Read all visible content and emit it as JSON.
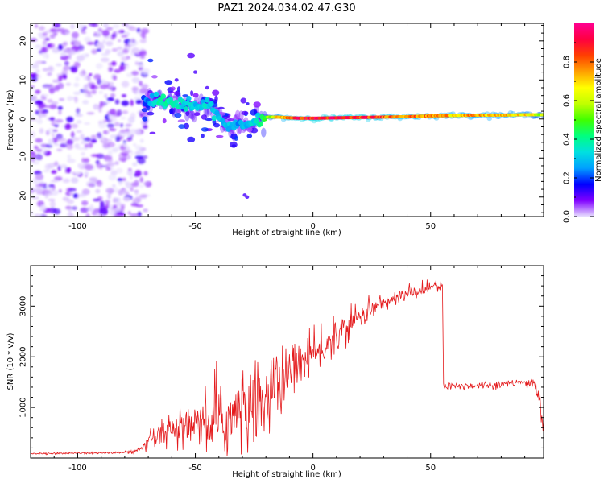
{
  "title": "PAZ1.2024.034.02.47.G30",
  "chart_data": [
    {
      "type": "heatmap",
      "xlabel": "Height of straight line (km)",
      "ylabel": "Frequency (Hz)",
      "xlim": [
        -120,
        98
      ],
      "ylim": [
        -25,
        24.5
      ],
      "xticks": [
        -100,
        -50,
        0,
        50
      ],
      "yticks": [
        -20,
        -10,
        0,
        10,
        20
      ],
      "colorbar": {
        "label": "Normalized spectral amplitude",
        "range": [
          0.0,
          1.0
        ],
        "ticks": [
          0.0,
          0.2,
          0.4,
          0.6,
          0.8
        ],
        "colormap": [
          "#e8e0ff",
          "#8000ff",
          "#0000ff",
          "#00a0ff",
          "#00e0e0",
          "#00ff80",
          "#40ff00",
          "#c0ff00",
          "#ffff00",
          "#ffa000",
          "#ff4000",
          "#ff0040",
          "#ff0090"
        ]
      },
      "ridge": {
        "x": [
          -72,
          -65,
          -60,
          -55,
          -50,
          -45,
          -40,
          -35,
          -32,
          -28,
          -24,
          -20,
          -15,
          -10,
          -5,
          0,
          10,
          20,
          30,
          40,
          50,
          60,
          70,
          80,
          90,
          98
        ],
        "y": [
          5,
          5,
          4,
          3.5,
          2.5,
          4,
          1,
          -3,
          -1.5,
          -2,
          -1,
          0.5,
          0.5,
          0.3,
          0.2,
          0.2,
          0.3,
          0.4,
          0.5,
          0.6,
          0.8,
          0.9,
          1.0,
          1.0,
          1.1,
          1.1
        ],
        "amplitude": [
          0.2,
          0.4,
          0.4,
          0.35,
          0.3,
          0.35,
          0.3,
          0.3,
          0.25,
          0.3,
          0.35,
          0.5,
          0.7,
          0.85,
          0.9,
          0.92,
          0.9,
          0.88,
          0.85,
          0.8,
          0.78,
          0.75,
          0.75,
          0.72,
          0.7,
          0.6
        ]
      },
      "noise_region_x": [
        -120,
        -72
      ]
    },
    {
      "type": "line",
      "xlabel": "Height of straight line (km)",
      "ylabel": "SNR (10 * v/v)",
      "xlim": [
        -120,
        98
      ],
      "ylim": [
        0,
        3800
      ],
      "xticks": [
        -100,
        -50,
        0,
        50
      ],
      "yticks": [
        1000,
        2000,
        3000
      ],
      "color": "#e41a1c",
      "series": [
        {
          "x": [
            -120,
            -110,
            -100,
            -90,
            -80,
            -75,
            -72,
            -70,
            -65,
            -60,
            -55,
            -50,
            -45,
            -40,
            -35,
            -30,
            -25,
            -20,
            -15,
            -10,
            -5,
            0,
            5,
            10,
            15,
            20,
            25,
            30,
            35,
            40,
            45,
            50,
            55,
            55.5,
            60,
            65,
            70,
            75,
            80,
            85,
            90,
            94,
            96,
            98
          ],
          "y": [
            90,
            90,
            100,
            100,
            110,
            140,
            200,
            300,
            450,
            500,
            550,
            600,
            650,
            700,
            800,
            900,
            1000,
            1200,
            1400,
            1700,
            1900,
            2000,
            2200,
            2400,
            2600,
            2800,
            2950,
            3050,
            3150,
            3250,
            3300,
            3380,
            3420,
            1400,
            1420,
            1430,
            1440,
            1450,
            1460,
            1470,
            1480,
            1500,
            1200,
            600
          ],
          "noise": [
            15,
            15,
            20,
            20,
            25,
            40,
            80,
            150,
            300,
            350,
            400,
            450,
            500,
            700,
            800,
            900,
            900,
            800,
            700,
            600,
            500,
            450,
            400,
            350,
            300,
            250,
            200,
            180,
            150,
            150,
            140,
            140,
            140,
            100,
            80,
            80,
            80,
            80,
            80,
            80,
            100,
            120,
            300,
            300
          ]
        }
      ]
    }
  ]
}
